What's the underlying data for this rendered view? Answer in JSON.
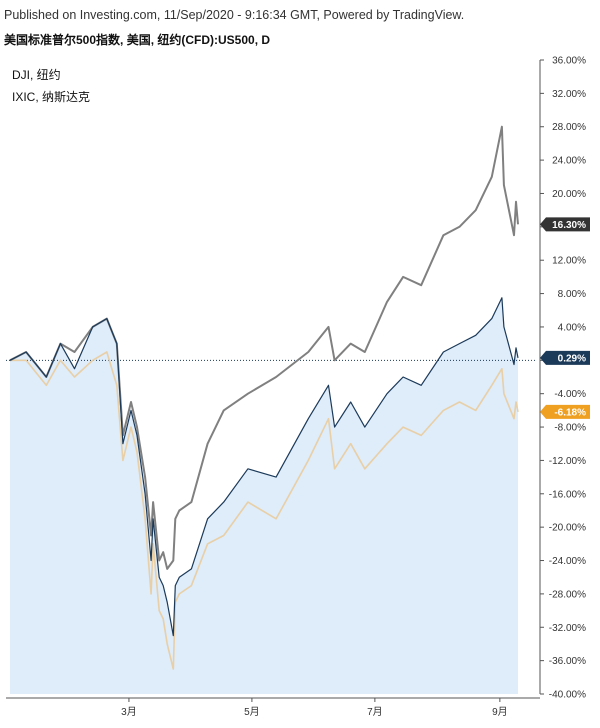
{
  "header": {
    "published": "Published on Investing.com, 11/Sep/2020 - 9:16:34 GMT, Powered by TradingView.",
    "title": "美国标准普尔500指数, 美国, 纽约(CFD):US500, D"
  },
  "legend": {
    "items": [
      "DJI, 纽约",
      "IXIC, 纳斯达克"
    ]
  },
  "colors": {
    "us500_line": "#1b3a5a",
    "us500_fill": "#dceaf8",
    "ixic_line": "#808080",
    "dji_line": "#e8cfa6",
    "badge_us500": "#1b3a5a",
    "badge_ixic": "#333333",
    "badge_dji": "#f0a020"
  },
  "chart_data": {
    "type": "line",
    "title": "美国标准普尔500指数, 美国, 纽约(CFD):US500, D",
    "ylim": [
      -40,
      36
    ],
    "yticks": [
      36,
      32,
      28,
      24,
      20,
      16,
      12,
      8,
      4,
      0,
      -4,
      -8,
      -12,
      -16,
      -20,
      -24,
      -28,
      -32,
      -36,
      -40
    ],
    "ytick_labels": [
      "36.00%",
      "32.00%",
      "28.00%",
      "24.00%",
      "20.00%",
      "16.00%",
      "12.00%",
      "8.00%",
      "4.00%",
      "",
      "-4.00%",
      "-8.00%",
      "-12.00%",
      "-16.00%",
      "-20.00%",
      "-24.00%",
      "-28.00%",
      "-32.00%",
      "-36.00%",
      "-40.00%"
    ],
    "xlim": [
      "2020-01-02",
      "2020-09-10"
    ],
    "xticks": [
      {
        "date": "2020-03-01",
        "label": "3月"
      },
      {
        "date": "2020-05-01",
        "label": "5月"
      },
      {
        "date": "2020-07-01",
        "label": "7月"
      },
      {
        "date": "2020-09-01",
        "label": "9月"
      }
    ],
    "grid": false,
    "legend_position": "top-left",
    "series": [
      {
        "name": "US500",
        "last_label": "0.29%",
        "last_value": 0.29,
        "x": [
          "2020-01-02",
          "2020-01-10",
          "2020-01-20",
          "2020-01-27",
          "2020-02-03",
          "2020-02-12",
          "2020-02-19",
          "2020-02-24",
          "2020-02-27",
          "2020-03-02",
          "2020-03-05",
          "2020-03-09",
          "2020-03-12",
          "2020-03-13",
          "2020-03-16",
          "2020-03-18",
          "2020-03-20",
          "2020-03-23",
          "2020-03-24",
          "2020-03-26",
          "2020-04-01",
          "2020-04-09",
          "2020-04-17",
          "2020-04-29",
          "2020-05-13",
          "2020-05-29",
          "2020-06-08",
          "2020-06-11",
          "2020-06-19",
          "2020-06-26",
          "2020-07-07",
          "2020-07-15",
          "2020-07-24",
          "2020-08-04",
          "2020-08-12",
          "2020-08-20",
          "2020-08-28",
          "2020-09-02",
          "2020-09-03",
          "2020-09-08",
          "2020-09-09",
          "2020-09-10"
        ],
        "values": [
          0,
          1,
          -2,
          2,
          -1,
          4,
          5,
          2,
          -10,
          -6,
          -9,
          -16,
          -24,
          -19,
          -26,
          -27,
          -29,
          -33,
          -27,
          -26,
          -25,
          -19,
          -17,
          -13,
          -14,
          -7,
          -3,
          -8,
          -5,
          -8,
          -4,
          -2,
          -3,
          1,
          2,
          3,
          5,
          7.5,
          4,
          -0.5,
          1.5,
          0.29
        ]
      },
      {
        "name": "IXIC, 纳斯达克",
        "last_label": "16.30%",
        "last_value": 16.3,
        "x": [
          "2020-01-02",
          "2020-01-10",
          "2020-01-20",
          "2020-01-27",
          "2020-02-03",
          "2020-02-12",
          "2020-02-19",
          "2020-02-24",
          "2020-02-27",
          "2020-03-02",
          "2020-03-05",
          "2020-03-09",
          "2020-03-12",
          "2020-03-13",
          "2020-03-16",
          "2020-03-18",
          "2020-03-20",
          "2020-03-23",
          "2020-03-24",
          "2020-03-26",
          "2020-04-01",
          "2020-04-09",
          "2020-04-17",
          "2020-04-29",
          "2020-05-13",
          "2020-05-29",
          "2020-06-08",
          "2020-06-11",
          "2020-06-19",
          "2020-06-26",
          "2020-07-07",
          "2020-07-15",
          "2020-07-24",
          "2020-08-04",
          "2020-08-12",
          "2020-08-20",
          "2020-08-28",
          "2020-09-02",
          "2020-09-03",
          "2020-09-08",
          "2020-09-09",
          "2020-09-10"
        ],
        "values": [
          0,
          1,
          -2,
          2,
          1,
          4,
          5,
          2,
          -9,
          -5,
          -8,
          -14,
          -21,
          -17,
          -24,
          -23,
          -25,
          -24,
          -19,
          -18,
          -17,
          -10,
          -6,
          -4,
          -2,
          1,
          4,
          0,
          2,
          1,
          7,
          10,
          9,
          15,
          16,
          18,
          22,
          28,
          21,
          15,
          19,
          16.3
        ]
      },
      {
        "name": "DJI, 纽约",
        "last_label": "-6.18%",
        "last_value": -6.18,
        "x": [
          "2020-01-02",
          "2020-01-10",
          "2020-01-20",
          "2020-01-27",
          "2020-02-03",
          "2020-02-12",
          "2020-02-19",
          "2020-02-24",
          "2020-02-27",
          "2020-03-02",
          "2020-03-05",
          "2020-03-09",
          "2020-03-12",
          "2020-03-13",
          "2020-03-16",
          "2020-03-18",
          "2020-03-20",
          "2020-03-23",
          "2020-03-24",
          "2020-03-26",
          "2020-04-01",
          "2020-04-09",
          "2020-04-17",
          "2020-04-29",
          "2020-05-13",
          "2020-05-29",
          "2020-06-08",
          "2020-06-11",
          "2020-06-19",
          "2020-06-26",
          "2020-07-07",
          "2020-07-15",
          "2020-07-24",
          "2020-08-04",
          "2020-08-12",
          "2020-08-20",
          "2020-08-28",
          "2020-09-02",
          "2020-09-03",
          "2020-09-08",
          "2020-09-09",
          "2020-09-10"
        ],
        "values": [
          0,
          0,
          -3,
          0,
          -2,
          0,
          1,
          -3,
          -12,
          -8,
          -11,
          -19,
          -28,
          -22,
          -30,
          -31,
          -34,
          -37,
          -29,
          -28,
          -27,
          -22,
          -21,
          -17,
          -19,
          -12,
          -7,
          -13,
          -10,
          -13,
          -10,
          -8,
          -9,
          -6,
          -5,
          -6,
          -3,
          -1,
          -4,
          -7,
          -5,
          -6.18
        ]
      }
    ]
  }
}
